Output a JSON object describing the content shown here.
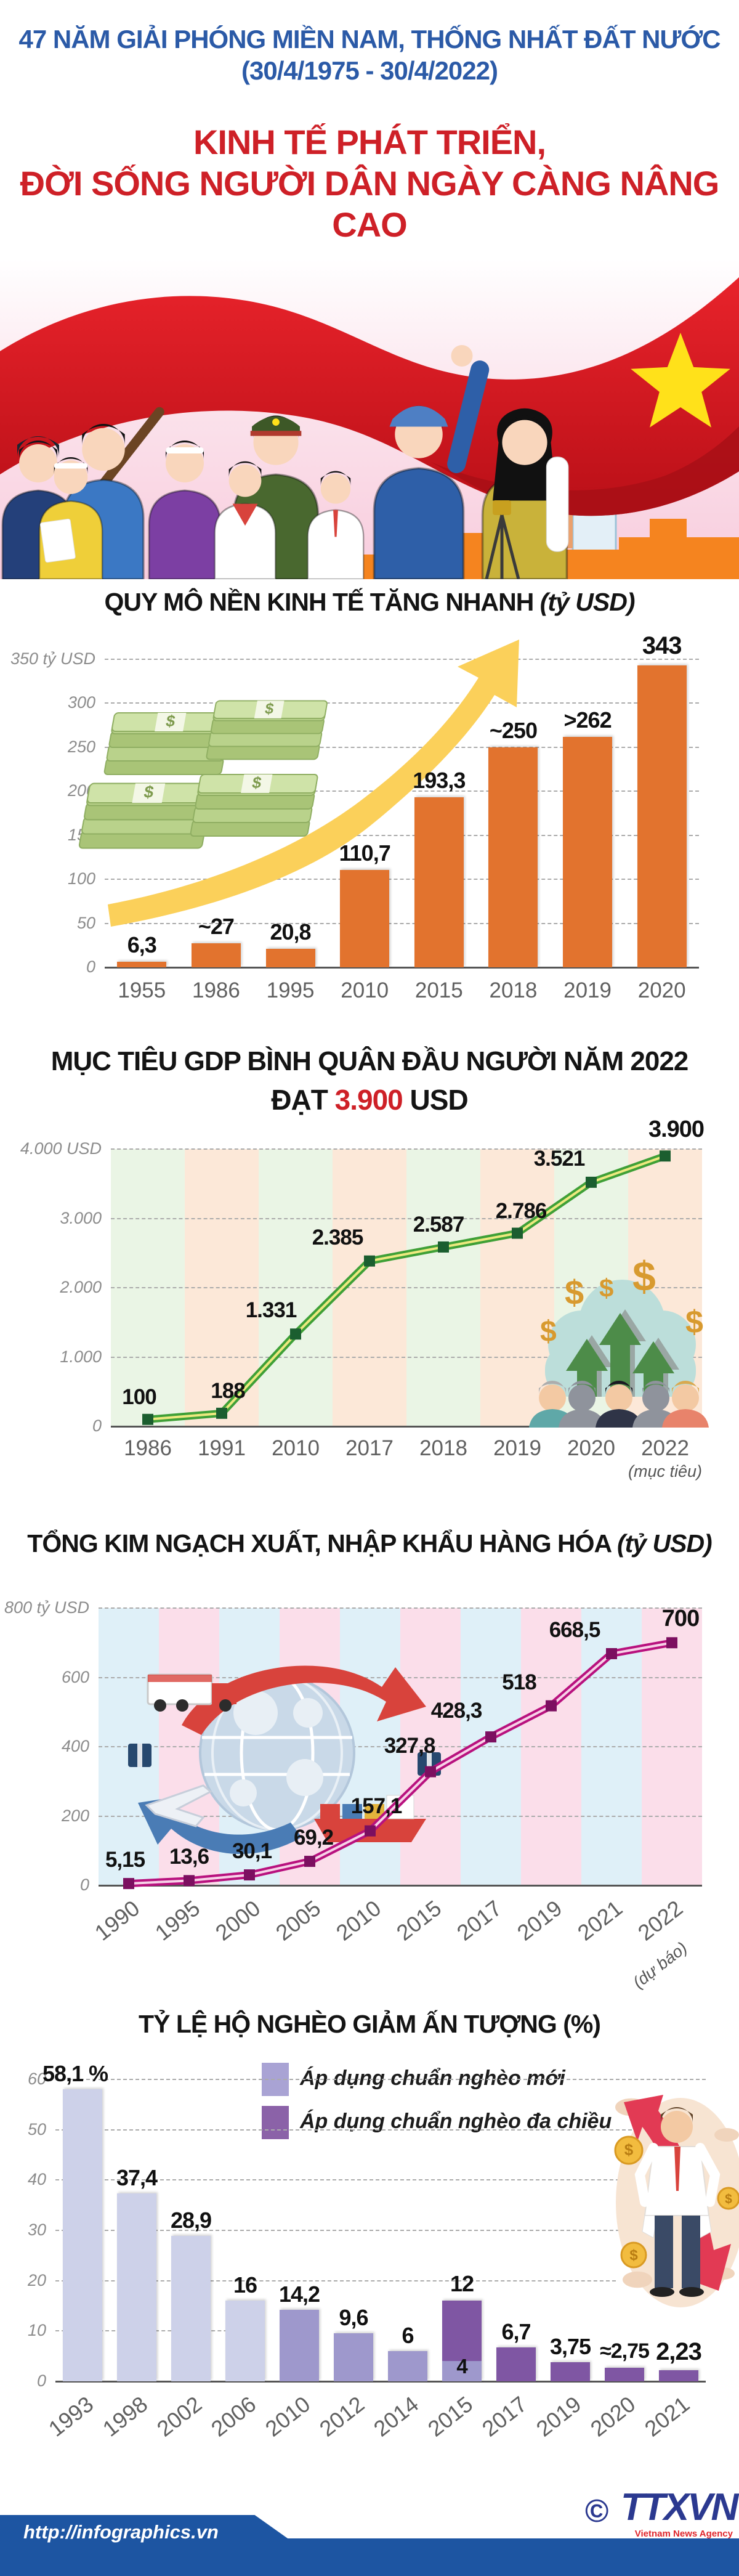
{
  "header": {
    "kicker_line1": "47 NĂM GIẢI PHÓNG MIỀN NAM, THỐNG NHẤT ĐẤT NƯỚC",
    "kicker_line2": "(30/4/1975 - 30/4/2022)",
    "title_line1": "KINH TẾ PHÁT TRIỂN,",
    "title_line2": "ĐỜI SỐNG NGƯỜI DÂN NGÀY CÀNG NÂNG CAO"
  },
  "colors": {
    "header_blue": "#2B5AA7",
    "title_red": "#CE2027",
    "bar_orange": "#E2732E",
    "arrow_yellow": "#FBD05A",
    "line_green_outer": "#3FA037",
    "line_green_core": "#EDE97F",
    "marker_green": "#1B5E2F",
    "stripe_green": "#EAF5E5",
    "stripe_peach": "#FCE8D8",
    "line_magenta_outer": "#B8117E",
    "line_magenta_core": "#F7D2E8",
    "marker_magenta": "#7C0F60",
    "stripe_blue": "#DFF0F8",
    "stripe_pink": "#FBDEEA",
    "poverty_light": "#CDD1E9",
    "poverty_mid": "#9E98CC",
    "poverty_dark": "#7F56A3",
    "footer_blue": "#1D55A2",
    "flag_red": "#DF1A22",
    "star_yellow": "#FFE11A"
  },
  "chart_data": [
    {
      "id": "economy-size",
      "type": "bar",
      "title": "QUY MÔ NỀN KINH TẾ TĂNG NHANH",
      "title_unit": "(tỷ USD)",
      "categories": [
        "1955",
        "1986",
        "1995",
        "2010",
        "2015",
        "2018",
        "2019",
        "2020"
      ],
      "values": [
        6.3,
        27,
        20.8,
        110.7,
        193.3,
        250,
        262,
        343
      ],
      "value_labels": [
        "6,3",
        "~27",
        "20,8",
        "110,7",
        "193,3",
        "~250",
        ">262",
        "343"
      ],
      "ylim": [
        0,
        350
      ],
      "yticks": [
        0,
        50,
        100,
        150,
        200,
        250,
        300,
        350
      ],
      "ytick_labels": [
        "0",
        "50",
        "100",
        "150",
        "200",
        "250",
        "300",
        "350 tỷ USD"
      ],
      "bar_color": "#E2732E",
      "grid": true,
      "legend_position": "none",
      "decorations": [
        "money-stacks-icon",
        "growth-arrow-icon"
      ]
    },
    {
      "id": "gdp-per-capita",
      "type": "line",
      "title_line1": "MỤC TIÊU GDP BÌNH QUÂN ĐẦU NGƯỜI NĂM 2022",
      "title_line2_prefix": "ĐẠT ",
      "title_line2_highlight": "3.900",
      "title_line2_suffix": " USD",
      "categories": [
        "1986",
        "1991",
        "2010",
        "2017",
        "2018",
        "2019",
        "2020",
        "2022"
      ],
      "last_category_note": "(mục tiêu)",
      "values": [
        100,
        188,
        1331,
        2385,
        2587,
        2786,
        3521,
        3900
      ],
      "value_labels": [
        "100",
        "188",
        "1.331",
        "2.385",
        "2.587",
        "2.786",
        "3.521",
        "3.900"
      ],
      "ylim": [
        0,
        4000
      ],
      "yticks": [
        0,
        1000,
        2000,
        3000,
        4000
      ],
      "ytick_labels": [
        "0",
        "1.000",
        "2.000",
        "3.000",
        "4.000 USD"
      ],
      "line_color": "#3FA037",
      "grid": true,
      "decorations": [
        "dollar-growth-people-icon"
      ]
    },
    {
      "id": "import-export",
      "type": "line",
      "title": "TỔNG KIM NGẠCH XUẤT, NHẬP KHẨU HÀNG HÓA",
      "title_unit": "(tỷ USD)",
      "categories": [
        "1990",
        "1995",
        "2000",
        "2005",
        "2010",
        "2015",
        "2017",
        "2019",
        "2021",
        "2022"
      ],
      "last_category_note": "(dự báo)",
      "values": [
        5.15,
        13.6,
        30.1,
        69.2,
        157.1,
        327.8,
        428.3,
        518,
        668.5,
        700
      ],
      "value_labels": [
        "5,15",
        "13,6",
        "30,1",
        "69,2",
        "157,1",
        "327,8",
        "428,3",
        "518",
        "668,5",
        "700"
      ],
      "ylim": [
        0,
        800
      ],
      "yticks": [
        0,
        200,
        400,
        600,
        800
      ],
      "ytick_labels": [
        "0",
        "200",
        "400",
        "600",
        "800 tỷ USD"
      ],
      "line_color": "#B8117E",
      "grid": true,
      "decorations": [
        "global-trade-icon"
      ]
    },
    {
      "id": "poverty-rate",
      "type": "bar",
      "title": "TỶ LỆ HỘ NGHÈO GIẢM ẤN TƯỢNG (%)",
      "legend": [
        {
          "label": "Áp dụng chuẩn nghèo mới",
          "color": "#A9A3D4"
        },
        {
          "label": "Áp dụng chuẩn nghèo đa chiều",
          "color": "#8B62A8"
        }
      ],
      "categories": [
        "1993",
        "1998",
        "2002",
        "2006",
        "2010",
        "2012",
        "2014",
        "2015",
        "2017",
        "2019",
        "2020",
        "2021"
      ],
      "values": [
        58.1,
        37.4,
        28.9,
        16,
        14.2,
        9.6,
        6,
        null,
        6.7,
        3.75,
        2.75,
        2.23
      ],
      "value_labels": [
        "58,1 %",
        "37,4",
        "28,9",
        "16",
        "14,2",
        "9,6",
        "6",
        "12",
        "6,7",
        "3,75",
        "≈2,75",
        "2,23"
      ],
      "stacked_2015": {
        "bottom_value": 4,
        "bottom_label": "4",
        "top_value": 12,
        "top_label": "12"
      },
      "bar_series": [
        "light",
        "light",
        "light",
        "light",
        "mid",
        "mid",
        "mid",
        "stacked",
        "dark",
        "dark",
        "dark",
        "dark"
      ],
      "ylim": [
        0,
        60
      ],
      "yticks": [
        0,
        10,
        20,
        30,
        40,
        50,
        60
      ],
      "ytick_labels": [
        "0",
        "10",
        "20",
        "30",
        "40",
        "50",
        "60"
      ],
      "grid": true,
      "decorations": [
        "empty-pockets-man-icon"
      ]
    }
  ],
  "footer": {
    "url": "http://infographics.vn",
    "copyright": "©",
    "agency": "TTXVN",
    "agency_sub": "Vietnam News Agency"
  }
}
